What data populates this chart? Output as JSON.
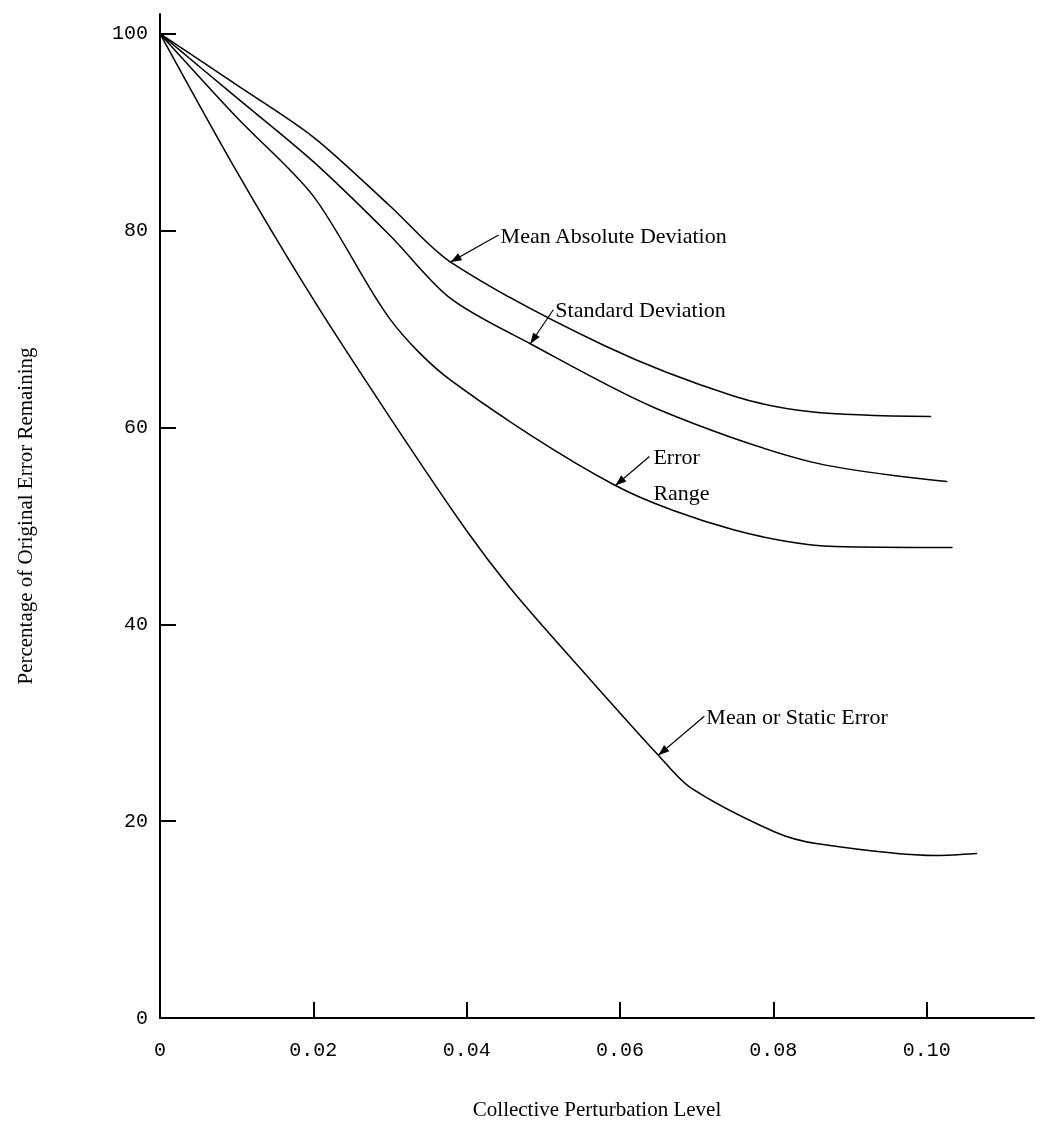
{
  "chart_data": {
    "type": "line",
    "xlabel": "Collective Perturbation Level",
    "ylabel": "Percentage of Original Error Remaining",
    "xlim": [
      0,
      0.114
    ],
    "ylim": [
      0,
      102
    ],
    "xticks": [
      0,
      0.02,
      0.04,
      0.06,
      0.08,
      {
        "value": 0.1,
        "label": "0.10"
      }
    ],
    "yticks": [
      0,
      20,
      40,
      60,
      80,
      100
    ],
    "grid": false,
    "marker": "none",
    "line_style": "solid",
    "color": "#000000",
    "series": [
      {
        "x": [
          0,
          0.01,
          0.02,
          0.03,
          0.0379,
          0.058,
          0.0748,
          0.0849,
          0.1005
        ],
        "values": [
          100,
          94.8,
          89.5,
          82.5,
          76.8,
          68.3,
          63.2,
          61.6,
          61.1
        ]
      },
      {
        "x": [
          0,
          0.01,
          0.02,
          0.03,
          0.0379,
          0.0483,
          0.0648,
          0.0849,
          0.1026
        ],
        "values": [
          100,
          93.5,
          87,
          79.5,
          73.1,
          68.5,
          61.9,
          56.5,
          54.5
        ]
      },
      {
        "x": [
          0,
          0.01,
          0.02,
          0.03,
          0.0379,
          0.0594,
          0.0748,
          0.0881,
          0.1033
        ],
        "values": [
          100,
          91.5,
          83.5,
          71,
          64.8,
          54.1,
          49.6,
          47.9,
          47.8
        ]
      },
      {
        "x": [
          0,
          0.01,
          0.02,
          0.03,
          0.04,
          0.0463,
          0.0561,
          0.065,
          0.0692,
          0.0802,
          0.0858,
          0.1013,
          0.1065
        ],
        "values": [
          100,
          86,
          73,
          61,
          49.5,
          43.1,
          34.4,
          26.7,
          23.4,
          18.9,
          17.7,
          16.5,
          16.7
        ]
      }
    ],
    "annotations": [
      {
        "text": "Mean Absolute Deviation",
        "x": 0.0379,
        "y": 76.8
      },
      {
        "text": "Standard Deviation",
        "x": 0.0483,
        "y": 68.5
      },
      {
        "text": "Error\nRange",
        "x": 0.0594,
        "y": 54.1
      },
      {
        "text": "Mean or Static Error",
        "x": 0.065,
        "y": 26.7
      }
    ]
  }
}
